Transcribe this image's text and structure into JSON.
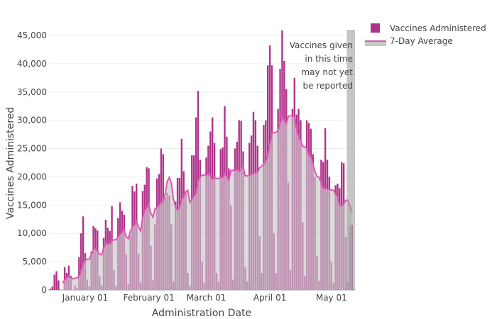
{
  "chart_data": {
    "type": "bar",
    "xlabel": "Administration Date",
    "ylabel": "Vaccines Administered",
    "start_date": "2020-12-15",
    "end_date": "2021-05-11",
    "ylim": [
      0,
      46000
    ],
    "yticks": [
      0,
      5000,
      10000,
      15000,
      20000,
      25000,
      30000,
      35000,
      40000,
      45000
    ],
    "ytick_labels": [
      "0",
      "5,000",
      "10,000",
      "15,000",
      "20,000",
      "25,000",
      "30,000",
      "35,000",
      "40,000",
      "45,000"
    ],
    "xticks": [
      {
        "date": "2021-01-01",
        "label": "January 01"
      },
      {
        "date": "2021-02-01",
        "label": "February 01"
      },
      {
        "date": "2021-03-01",
        "label": "March 01"
      },
      {
        "date": "2021-04-01",
        "label": "April 01"
      },
      {
        "date": "2021-05-01",
        "label": "May 01"
      }
    ],
    "grid": true,
    "legend_position": "top-right",
    "series": [
      {
        "name": "Vaccines Administered",
        "type": "bar",
        "color": "#b0338a",
        "values": [
          200,
          600,
          2700,
          3300,
          1700,
          0,
          0,
          4000,
          3000,
          4300,
          2500,
          0,
          800,
          300,
          5800,
          10000,
          13000,
          6500,
          1800,
          600,
          6800,
          11300,
          10900,
          10500,
          2400,
          800,
          9200,
          12400,
          11000,
          10400,
          14800,
          3500,
          700,
          12700,
          15500,
          14000,
          13300,
          6300,
          1000,
          9700,
          18400,
          17400,
          18800,
          6400,
          1300,
          17500,
          18600,
          21700,
          21500,
          7800,
          1700,
          11600,
          19700,
          20500,
          25000,
          24000,
          16400,
          17200,
          16700,
          11600,
          1500,
          15600,
          19800,
          19800,
          26700,
          21000,
          17500,
          3000,
          700,
          23800,
          23800,
          30500,
          35200,
          23000,
          5000,
          1200,
          23400,
          25500,
          28000,
          30500,
          26000,
          3000,
          1500,
          24900,
          25200,
          32500,
          27100,
          21500,
          15000,
          1800,
          25000,
          26200,
          30000,
          29900,
          24500,
          4000,
          1500,
          26000,
          27300,
          31500,
          30000,
          25500,
          9500,
          3000,
          29200,
          30000,
          39700,
          43200,
          39700,
          10000,
          3000,
          32000,
          39100,
          45900,
          40500,
          35500,
          19000,
          3500,
          32000,
          37500,
          31000,
          32000,
          30000,
          12000,
          2500,
          30000,
          29500,
          28500,
          24000,
          20000,
          6000,
          1600,
          23000,
          22600,
          28600,
          23000,
          20000,
          5000,
          1200,
          18500,
          18800,
          18000,
          22600,
          22400,
          9400,
          1400,
          11300,
          11500
        ]
      },
      {
        "name": "7-Day Average",
        "type": "area",
        "color": "#e055b5",
        "fill": "#c8c8c8",
        "method": "7-day rolling mean of daily values"
      }
    ],
    "shaded_region": {
      "start_date": "2021-05-09",
      "end_date": "2021-05-11",
      "color": "#a0a0a0"
    },
    "annotation": [
      "Vaccines given",
      "in this time",
      "may not yet",
      "be reported"
    ]
  }
}
